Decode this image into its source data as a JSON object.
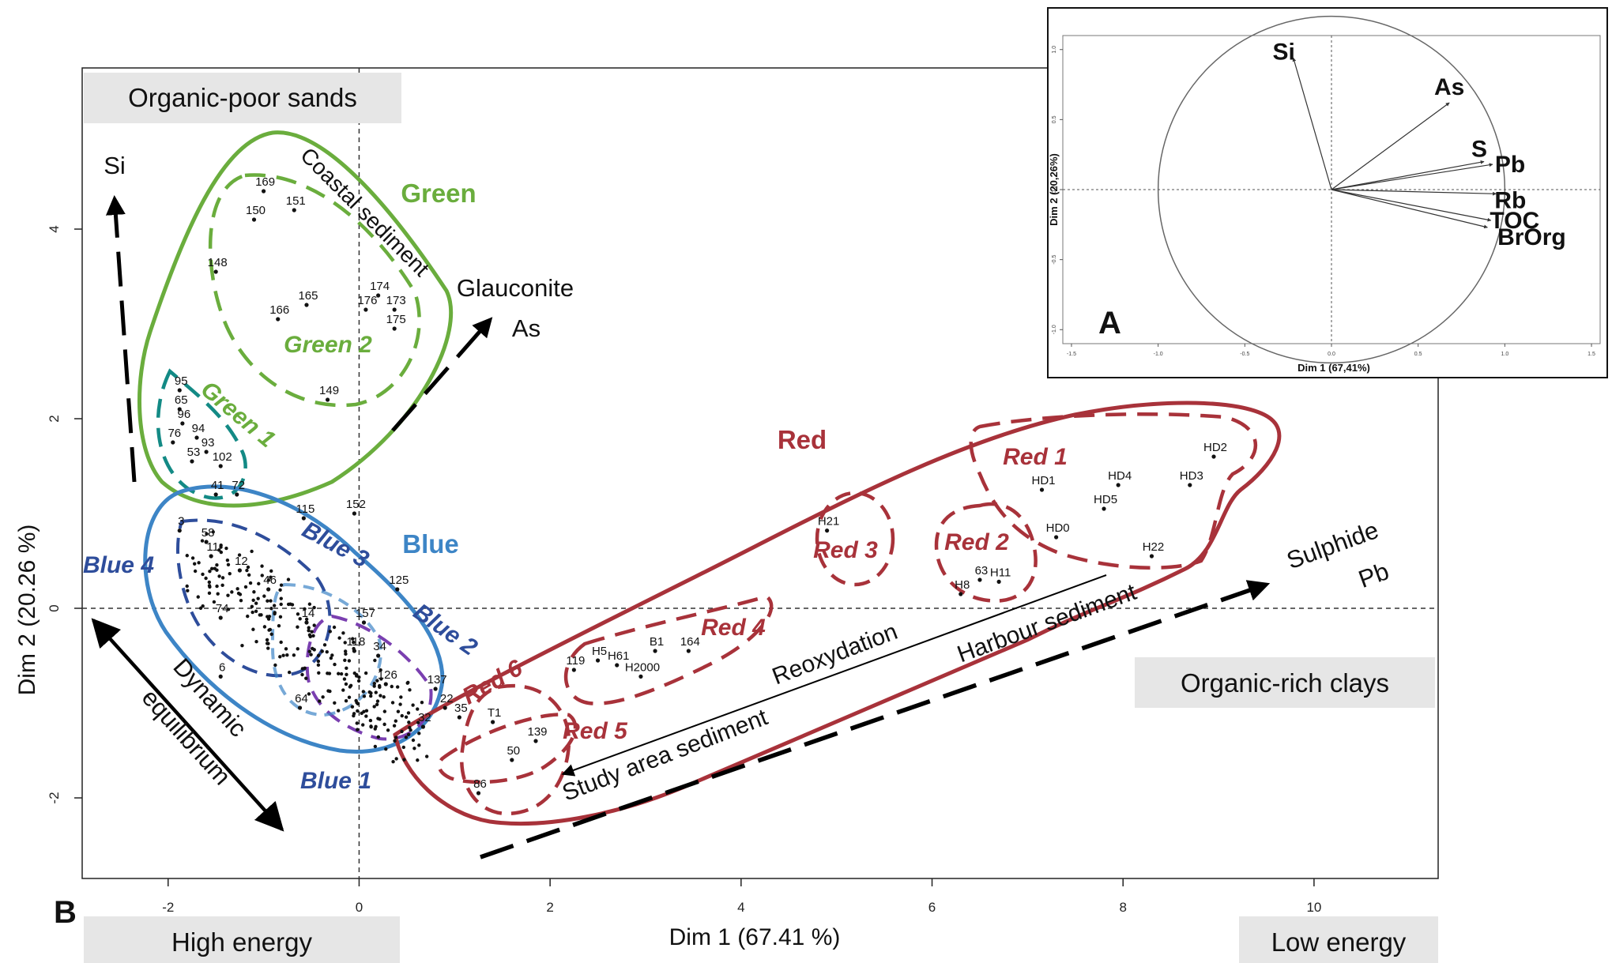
{
  "chart_data": [
    {
      "type": "scatter",
      "panel_label": "B",
      "xlabel": "Dim 1 (67.41 %)",
      "ylabel": "Dim 2 (20.26 %)",
      "xlim": [
        -2.9,
        11.3
      ],
      "ylim": [
        -2.85,
        5.7
      ],
      "x_ticks": [
        "-2",
        "0",
        "2",
        "4",
        "6",
        "8",
        "10"
      ],
      "x_tick_values": [
        -2,
        0,
        2,
        4,
        6,
        8,
        10
      ],
      "y_ticks": [
        "-2",
        "0",
        "2",
        "4"
      ],
      "y_tick_values": [
        -2,
        0,
        2,
        4
      ],
      "reference_lines": {
        "x": 0,
        "y": 0,
        "style": "dashed"
      },
      "corner_labels": {
        "top_left": "Organic-poor sands",
        "right": "Organic-rich clays",
        "bottom_left": "High energy",
        "bottom_right": "Low energy"
      },
      "points": [
        {
          "label": "169",
          "x": -1.0,
          "y": 4.4
        },
        {
          "label": "150",
          "x": -1.1,
          "y": 4.1
        },
        {
          "label": "151",
          "x": -0.68,
          "y": 4.2
        },
        {
          "label": "148",
          "x": -1.5,
          "y": 3.55
        },
        {
          "label": "165",
          "x": -0.55,
          "y": 3.2
        },
        {
          "label": "166",
          "x": -0.85,
          "y": 3.05
        },
        {
          "label": "174",
          "x": 0.2,
          "y": 3.3
        },
        {
          "label": "176",
          "x": 0.07,
          "y": 3.15
        },
        {
          "label": "173",
          "x": 0.37,
          "y": 3.15
        },
        {
          "label": "175",
          "x": 0.37,
          "y": 2.95
        },
        {
          "label": "149",
          "x": -0.33,
          "y": 2.2
        },
        {
          "label": "95",
          "x": -1.88,
          "y": 2.3
        },
        {
          "label": "65",
          "x": -1.88,
          "y": 2.1
        },
        {
          "label": "96",
          "x": -1.85,
          "y": 1.95
        },
        {
          "label": "94",
          "x": -1.7,
          "y": 1.8
        },
        {
          "label": "76",
          "x": -1.95,
          "y": 1.75
        },
        {
          "label": "93",
          "x": -1.6,
          "y": 1.65
        },
        {
          "label": "53",
          "x": -1.75,
          "y": 1.55
        },
        {
          "label": "102",
          "x": -1.45,
          "y": 1.5
        },
        {
          "label": "41",
          "x": -1.5,
          "y": 1.2
        },
        {
          "label": "72",
          "x": -1.28,
          "y": 1.2
        },
        {
          "label": "115",
          "x": -0.58,
          "y": 0.95
        },
        {
          "label": "152",
          "x": -0.05,
          "y": 1.0
        },
        {
          "label": "3",
          "x": -1.88,
          "y": 0.82
        },
        {
          "label": "58",
          "x": -1.6,
          "y": 0.7
        },
        {
          "label": "11",
          "x": -1.55,
          "y": 0.55
        },
        {
          "label": "12",
          "x": -1.25,
          "y": 0.4
        },
        {
          "label": "125",
          "x": 0.4,
          "y": 0.2
        },
        {
          "label": "46",
          "x": -0.95,
          "y": 0.2
        },
        {
          "label": "14",
          "x": -0.55,
          "y": -0.15
        },
        {
          "label": "157",
          "x": 0.05,
          "y": -0.15
        },
        {
          "label": "118",
          "x": -0.05,
          "y": -0.45
        },
        {
          "label": "34",
          "x": 0.2,
          "y": -0.5
        },
        {
          "label": "126",
          "x": 0.28,
          "y": -0.8
        },
        {
          "label": "137",
          "x": 0.8,
          "y": -0.85
        },
        {
          "label": "22",
          "x": 0.9,
          "y": -1.05
        },
        {
          "label": "35",
          "x": 1.05,
          "y": -1.15
        },
        {
          "label": "32",
          "x": 0.67,
          "y": -1.25
        },
        {
          "label": "64",
          "x": -0.62,
          "y": -1.05
        },
        {
          "label": "6",
          "x": -1.45,
          "y": -0.72
        },
        {
          "label": "74",
          "x": -1.45,
          "y": -0.1
        },
        {
          "label": "119",
          "x": 2.25,
          "y": -0.65
        },
        {
          "label": "H5",
          "x": 2.5,
          "y": -0.55
        },
        {
          "label": "H61",
          "x": 2.7,
          "y": -0.6
        },
        {
          "label": "H2000",
          "x": 2.95,
          "y": -0.72
        },
        {
          "label": "B1",
          "x": 3.1,
          "y": -0.45
        },
        {
          "label": "164",
          "x": 3.45,
          "y": -0.45
        },
        {
          "label": "H21",
          "x": 4.9,
          "y": 0.82
        },
        {
          "label": "H8",
          "x": 6.3,
          "y": 0.15
        },
        {
          "label": "63",
          "x": 6.5,
          "y": 0.3
        },
        {
          "label": "H11",
          "x": 6.7,
          "y": 0.28
        },
        {
          "label": "HD1",
          "x": 7.15,
          "y": 1.25
        },
        {
          "label": "HD4",
          "x": 7.95,
          "y": 1.3
        },
        {
          "label": "HD5",
          "x": 7.8,
          "y": 1.05
        },
        {
          "label": "HD3",
          "x": 8.7,
          "y": 1.3
        },
        {
          "label": "HD2",
          "x": 8.95,
          "y": 1.6
        },
        {
          "label": "HD0",
          "x": 7.3,
          "y": 0.75
        },
        {
          "label": "H22",
          "x": 8.3,
          "y": 0.55
        },
        {
          "label": "T1",
          "x": 1.4,
          "y": -1.2
        },
        {
          "label": "139",
          "x": 1.85,
          "y": -1.4
        },
        {
          "label": "50",
          "x": 1.6,
          "y": -1.6
        },
        {
          "label": "86",
          "x": 1.25,
          "y": -1.95
        }
      ],
      "groups": [
        {
          "name": "Green",
          "color": "#6aad3d"
        },
        {
          "name": "Green 2",
          "color": "#6aad3d"
        },
        {
          "name": "Green 1",
          "color": "#6aad3d"
        },
        {
          "name": "Blue",
          "color": "#3d85c6"
        },
        {
          "name": "Blue 1",
          "color": "#2e4d9b"
        },
        {
          "name": "Blue 2",
          "color": "#2e4d9b"
        },
        {
          "name": "Blue 3",
          "color": "#2e4d9b"
        },
        {
          "name": "Blue 4",
          "color": "#2e4d9b"
        },
        {
          "name": "Red",
          "color": "#a8323a"
        },
        {
          "name": "Red 1",
          "color": "#a8323a"
        },
        {
          "name": "Red 2",
          "color": "#a8323a"
        },
        {
          "name": "Red 3",
          "color": "#a8323a"
        },
        {
          "name": "Red 4",
          "color": "#a8323a"
        },
        {
          "name": "Red 5",
          "color": "#a8323a"
        },
        {
          "name": "Red 6",
          "color": "#a8323a"
        }
      ],
      "annotations": {
        "si": "Si",
        "glauconite": "Glauconite",
        "as": "As",
        "sulphide": "Sulphide",
        "pb": "Pb",
        "dynamic": "Dynamic",
        "equilibrium": "equilibrium",
        "coastal": "Coastal sediment",
        "reoxydation": "Reoxydation",
        "harbour": "Harbour sediment",
        "study_area": "Study area sediment"
      }
    },
    {
      "type": "correlation_circle",
      "panel_label": "A",
      "xlabel": "Dim 1 (67,41%)",
      "ylabel": "Dim 2 (20,26%)",
      "xlim": [
        -1.55,
        1.55
      ],
      "ylim": [
        -1.1,
        1.1
      ],
      "x_ticks": [
        "-1.5",
        "-1.0",
        "-0.5",
        "0.0",
        "0.5",
        "1.0",
        "1.5"
      ],
      "x_tick_values": [
        -1.5,
        -1.0,
        -0.5,
        0.0,
        0.5,
        1.0,
        1.5
      ],
      "y_ticks": [
        "-1.0",
        "-0.5",
        "0.0",
        "0.5",
        "1.0"
      ],
      "y_tick_values": [
        -1.0,
        -0.5,
        0.0,
        0.5,
        1.0
      ],
      "variables": [
        {
          "name": "Si",
          "x": -0.22,
          "y": 0.94
        },
        {
          "name": "As",
          "x": 0.68,
          "y": 0.62
        },
        {
          "name": "S",
          "x": 0.88,
          "y": 0.2
        },
        {
          "name": "Pb",
          "x": 0.93,
          "y": 0.18
        },
        {
          "name": "Rb",
          "x": 0.95,
          "y": -0.03
        },
        {
          "name": "TOC",
          "x": 0.92,
          "y": -0.22
        },
        {
          "name": "BrOrg",
          "x": 0.9,
          "y": -0.27
        }
      ]
    }
  ],
  "colors": {
    "green": "#6aad3d",
    "teal": "#138a85",
    "blue": "#3d85c6",
    "dark_blue": "#2e4d9b",
    "purple": "#7a3fb0",
    "red": "#a8323a",
    "label_box": "#e6e6e6"
  }
}
